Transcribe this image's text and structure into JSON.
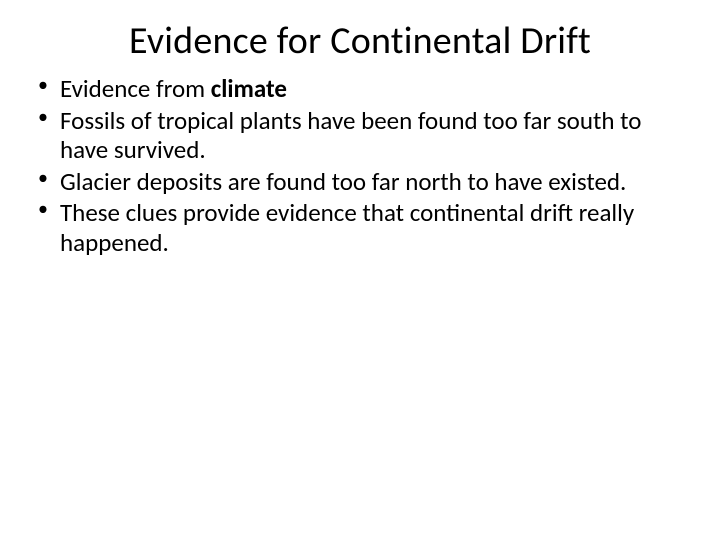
{
  "slide": {
    "title": "Evidence for Continental Drift",
    "background_color": "#ffffff",
    "text_color": "#000000",
    "title_fontsize": 38,
    "body_fontsize": 25,
    "bullets": [
      {
        "prefix": "Evidence from ",
        "bold": "climate",
        "suffix": ""
      },
      {
        "text": "Fossils of tropical plants have been found too far south to have survived."
      },
      {
        "text": "Glacier deposits are found too far north to have existed."
      },
      {
        "text": "These clues provide evidence that continental drift really happened."
      }
    ]
  }
}
